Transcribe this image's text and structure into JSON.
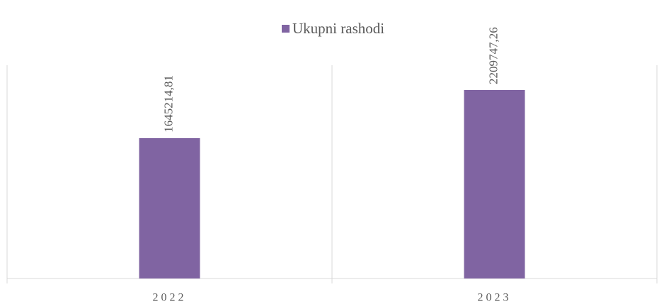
{
  "chart_data": {
    "type": "bar",
    "categories": [
      "2022",
      "2023"
    ],
    "series": [
      {
        "name": "Ukupni rashodi",
        "color": "#8064a2",
        "values": [
          1645214.81,
          2209747.26
        ],
        "value_labels": [
          "1645214,81",
          "2209747,26"
        ]
      }
    ],
    "ylim": [
      0,
      2500000
    ],
    "legend": "top"
  }
}
